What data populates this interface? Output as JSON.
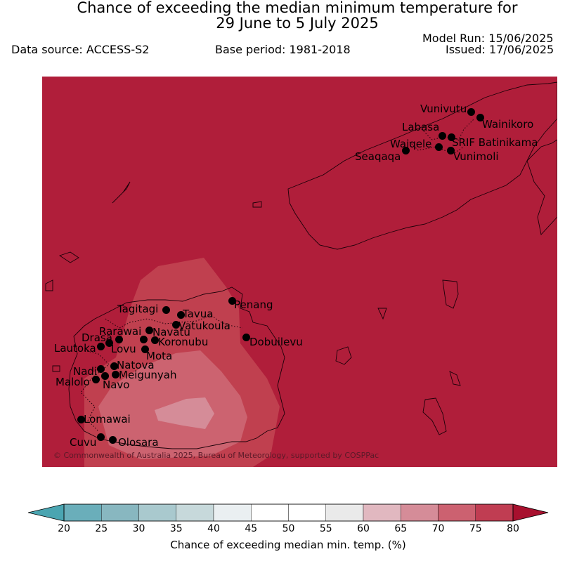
{
  "title": {
    "line1": "Chance of exceeding the median minimum temperature for",
    "line2": "29 June to 5 July 2025"
  },
  "header": {
    "model_run": "Model Run: 15/06/2025",
    "issued": "Issued: 17/06/2025",
    "data_source": "Data source: ACCESS-S2",
    "base_period": "Base period: 1981-2018"
  },
  "map": {
    "background_color": "#b01e3a",
    "copyright": "© Commonwealth of Australia 2025, Bureau of Meteorology, supported by COSPPac",
    "towns": [
      "Vunivutu",
      "Wainikoro",
      "Labasa",
      "Waiqele",
      "SRIF Batinikama",
      "Seaqaqa",
      "Vunimoli",
      "Tagitagi",
      "Tavua",
      "Penang",
      "Rarawai",
      "Navatu",
      "Vatukoula",
      "Drasa",
      "Koronubu",
      "Dobuilevu",
      "Lautoka",
      "Lovu",
      "Mota",
      "Nadi",
      "Natova",
      "Meigunyah",
      "Malolo",
      "Navo",
      "Lomawai",
      "Cuvu",
      "Olosara"
    ]
  },
  "colorbar": {
    "label": "Chance of exceeding median min. temp. (%)",
    "ticks": [
      "20",
      "25",
      "30",
      "35",
      "40",
      "45",
      "50",
      "55",
      "60",
      "65",
      "70",
      "75",
      "80"
    ],
    "colors": [
      "#6aaeba",
      "#88b7c0",
      "#a9c9ce",
      "#c7d9db",
      "#eaeff1",
      "#ffffff",
      "#ffffff",
      "#eaeaea",
      "#e1b8c0",
      "#d58c98",
      "#cc6170",
      "#c03d52"
    ],
    "under_color": "#4aa5b1",
    "over_color": "#a8102e"
  }
}
